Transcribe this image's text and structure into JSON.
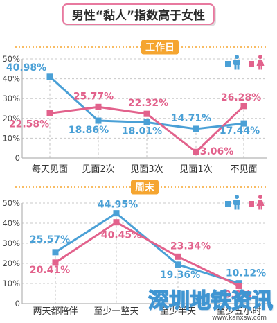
{
  "title": "男性“黏人”指数高于女性",
  "colors": {
    "accent": "#f5a530",
    "title_border": "#e8799f"
  },
  "chart_data": [
    {
      "type": "line",
      "title": "工作日",
      "categories": [
        "每天见面",
        "见面2次",
        "见面3次",
        "见面1次",
        "不见面"
      ],
      "series": [
        {
          "icon": "male-icon",
          "color": "#4aa0d6",
          "values": [
            40.98,
            18.86,
            18.01,
            14.71,
            17.44
          ]
        },
        {
          "icon": "female-icon",
          "color": "#e2628c",
          "values": [
            22.58,
            25.77,
            22.32,
            3.06,
            26.28
          ]
        }
      ],
      "value_suffix": "%",
      "ylim": [
        0,
        50
      ],
      "yticks": [
        0,
        10,
        20,
        30,
        40,
        50
      ],
      "ytick_labels": [
        "0",
        "10%",
        "20%",
        "30%",
        "40%",
        "50%"
      ],
      "grid": true,
      "data_labels": true,
      "legend_placement": "top-right"
    },
    {
      "type": "line",
      "title": "周末",
      "categories": [
        "两天都陪伴",
        "至少一整天",
        "至少半天",
        "至少五小时"
      ],
      "series": [
        {
          "icon": "male-icon",
          "color": "#4aa0d6",
          "values": [
            25.57,
            44.95,
            19.36,
            10.12
          ]
        },
        {
          "icon": "female-icon",
          "color": "#e2628c",
          "values": [
            20.41,
            40.45,
            23.34,
            8.8
          ]
        }
      ],
      "value_suffix": "%",
      "ylim": [
        0,
        50
      ],
      "yticks": [
        0,
        10,
        20,
        30,
        40,
        50
      ],
      "ytick_labels": [
        "0",
        "10%",
        "20%",
        "30%",
        "40%",
        "50%"
      ],
      "grid": true,
      "data_labels": true,
      "legend_placement": "top-right"
    }
  ],
  "watermark": {
    "text": "深圳地铁资讯",
    "url": "www.kanxsw.com"
  }
}
